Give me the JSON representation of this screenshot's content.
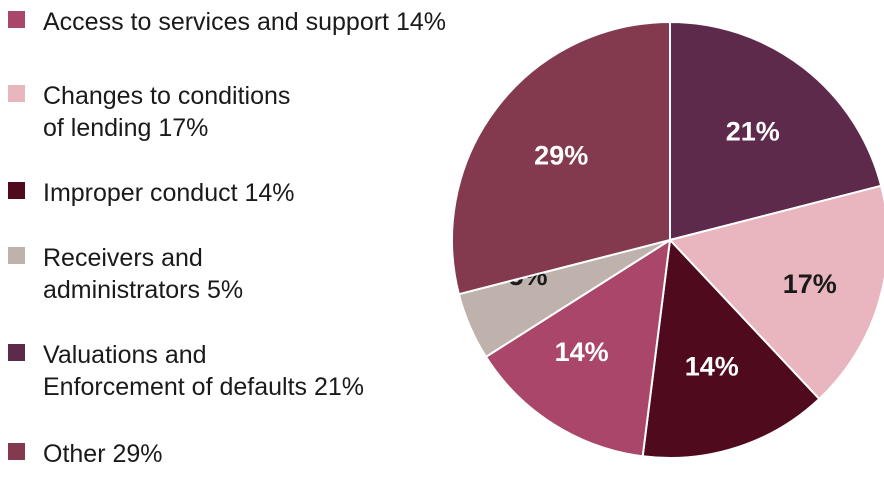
{
  "chart_data": {
    "type": "pie",
    "title": "",
    "legend_position": "left",
    "start_angle_deg": 0,
    "direction": "clockwise",
    "slices": [
      {
        "name": "Valuations and\nEnforcement of defaults",
        "value": 21,
        "label": "21%",
        "legend_label": "Valuations and\nEnforcement of defaults 21%",
        "color": "#5e2a4b",
        "label_color": "#ffffff"
      },
      {
        "name": "Changes to conditions\nof lending",
        "value": 17,
        "label": "17%",
        "legend_label": "Changes to conditions\nof lending 17%",
        "color": "#e9b5bf",
        "label_color": "#1a1a1a"
      },
      {
        "name": "Improper conduct",
        "value": 14,
        "label": "14%",
        "legend_label": "Improper conduct 14%",
        "color": "#4f0a1e",
        "label_color": "#ffffff"
      },
      {
        "name": "Access to services and support",
        "value": 14,
        "label": "14%",
        "legend_label": "Access to services and support 14%",
        "color": "#ab466b",
        "label_color": "#ffffff"
      },
      {
        "name": "Receivers and\nadministrators",
        "value": 5,
        "label": "5%",
        "legend_label": "Receivers and\nadministrators 5%",
        "color": "#bfb2ad",
        "label_color": "#1a1a1a"
      },
      {
        "name": "Other",
        "value": 29,
        "label": "29%",
        "legend_label": "Other 29%",
        "color": "#833a4f",
        "label_color": "#ffffff"
      }
    ],
    "legend_order": [
      3,
      1,
      2,
      4,
      0,
      5
    ]
  }
}
